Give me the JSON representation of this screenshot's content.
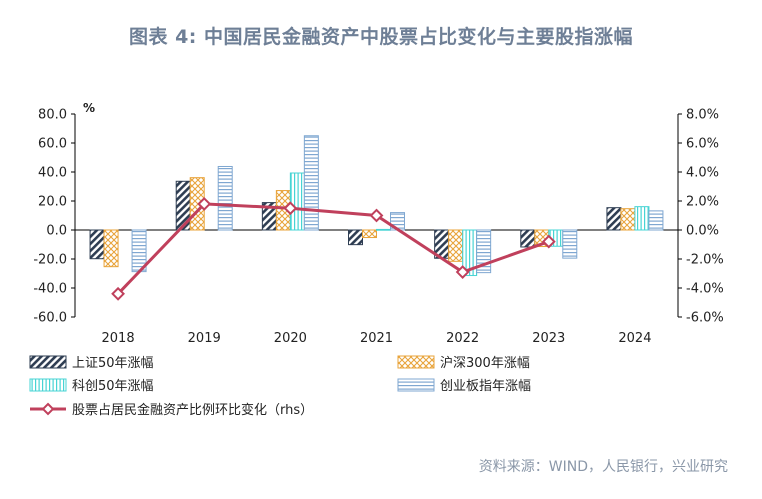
{
  "title": "图表 4:    中国居民金融资产中股票占比变化与主要股指涨幅",
  "source": "资料来源：WIND，人民银行，兴业研究",
  "colors": {
    "sse50": "#2e3d52",
    "csi300": "#e8a33a",
    "star50": "#47d4d4",
    "chinext": "#7fa7d1",
    "line": "#c0405c"
  },
  "chart_data": {
    "type": "bar",
    "categories": [
      "2018",
      "2019",
      "2020",
      "2021",
      "2022",
      "2023",
      "2024"
    ],
    "y_unit": "%",
    "ylim": [
      -60,
      80
    ],
    "yticks": [
      "80.0",
      "60.0",
      "40.0",
      "20.0",
      "0.0",
      "-20.0",
      "-40.0",
      "-60.0"
    ],
    "y2lim": [
      -6,
      8
    ],
    "y2ticks": [
      "8.0%",
      "6.0%",
      "4.0%",
      "2.0%",
      "0.0%",
      "-2.0%",
      "-4.0%",
      "-6.0%"
    ],
    "series": [
      {
        "name": "上证50年涨幅",
        "axis": "left",
        "pattern": "diagonal",
        "values": [
          -19.8,
          33.6,
          18.9,
          -10.1,
          -19.5,
          -11.7,
          15.4
        ]
      },
      {
        "name": "沪深300年涨幅",
        "axis": "left",
        "pattern": "crosshatch",
        "values": [
          -25.3,
          36.1,
          27.2,
          -5.2,
          -21.6,
          -11.4,
          14.7
        ]
      },
      {
        "name": "科创50年涨幅",
        "axis": "left",
        "pattern": "vertical",
        "values": [
          null,
          null,
          39.3,
          0.4,
          -31.4,
          -11.2,
          16.1
        ]
      },
      {
        "name": "创业板指年涨幅",
        "axis": "left",
        "pattern": "horizontal",
        "values": [
          -28.7,
          43.8,
          65.0,
          12.0,
          -29.4,
          -19.4,
          13.2
        ]
      },
      {
        "name": "股票占居民金融资产比例环比变化（rhs）",
        "axis": "right",
        "type": "line",
        "values": [
          -4.4,
          1.8,
          1.5,
          1.0,
          -2.9,
          -0.8,
          null
        ]
      }
    ]
  }
}
